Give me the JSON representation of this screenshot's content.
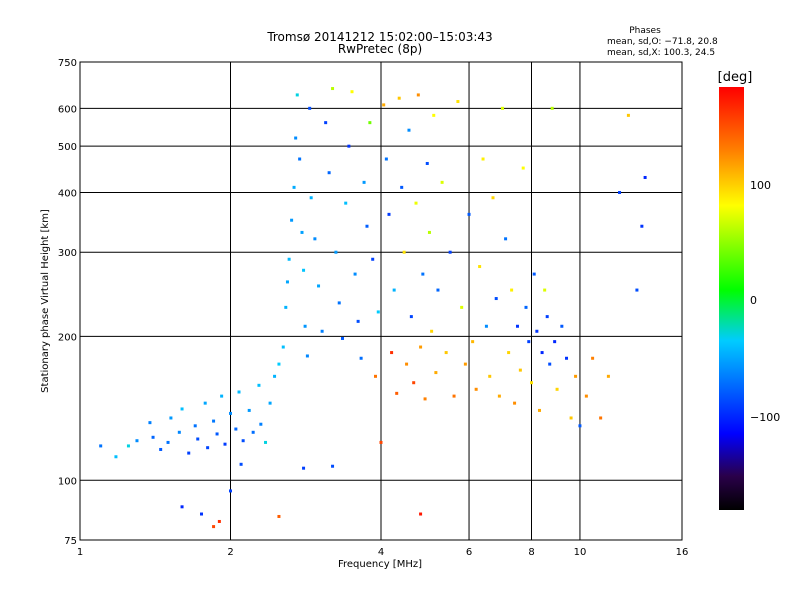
{
  "header": {
    "title": "Tromsø 20141212 15:02:00–15:03:43",
    "subtitle": "RwPretec (8p)"
  },
  "phases_panel": {
    "label": "Phases",
    "line_o": "mean, sd,O: −71.8, 20.8",
    "line_x": "mean, sd,X: 100.3, 24.5"
  },
  "colorbar": {
    "unit": "[deg]",
    "tick_labels": [
      "100",
      "0",
      "−100"
    ]
  },
  "chart_data": {
    "type": "scatter",
    "title": "Tromsø 20141212 15:02:00–15:03:43",
    "subtitle": "RwPretec (8p)",
    "xlabel": "Frequency [MHz]",
    "ylabel": "Stationary phase Virtual Height [km]",
    "x_scale": "log",
    "y_scale": "log",
    "xlim": [
      1,
      16
    ],
    "ylim": [
      75,
      750
    ],
    "x_ticks": [
      1,
      2,
      4,
      6,
      8,
      10,
      16
    ],
    "x_tick_labels": [
      "1",
      "2",
      "4",
      "6",
      "8",
      "10",
      "16"
    ],
    "y_ticks": [
      75,
      100,
      200,
      300,
      400,
      500,
      600,
      750
    ],
    "y_tick_labels": [
      "75",
      "100",
      "200",
      "300",
      "400",
      "500",
      "600",
      "750"
    ],
    "grid": true,
    "color_scale": {
      "quantity": "phase",
      "unit": "deg",
      "range": [
        -180,
        180
      ],
      "ticks": [
        100,
        0,
        -100
      ]
    },
    "points": [
      [
        1.1,
        118,
        -70
      ],
      [
        1.18,
        112,
        -40
      ],
      [
        1.25,
        118,
        -30
      ],
      [
        1.3,
        121,
        -60
      ],
      [
        1.38,
        132,
        -65
      ],
      [
        1.4,
        123,
        -75
      ],
      [
        1.45,
        116,
        -80
      ],
      [
        1.5,
        120,
        -70
      ],
      [
        1.52,
        135,
        -55
      ],
      [
        1.58,
        126,
        -62
      ],
      [
        1.6,
        141,
        -40
      ],
      [
        1.65,
        114,
        -90
      ],
      [
        1.7,
        130,
        -70
      ],
      [
        1.72,
        122,
        -85
      ],
      [
        1.78,
        145,
        -50
      ],
      [
        1.8,
        117,
        -88
      ],
      [
        1.85,
        133,
        -68
      ],
      [
        1.88,
        125,
        -80
      ],
      [
        1.92,
        150,
        -45
      ],
      [
        1.95,
        119,
        -92
      ],
      [
        2.0,
        138,
        -60
      ],
      [
        2.05,
        128,
        -75
      ],
      [
        2.08,
        153,
        -42
      ],
      [
        2.12,
        121,
        -85
      ],
      [
        2.18,
        140,
        -55
      ],
      [
        2.22,
        126,
        -72
      ],
      [
        2.28,
        158,
        -40
      ],
      [
        2.3,
        131,
        -65
      ],
      [
        2.35,
        120,
        -30
      ],
      [
        2.4,
        145,
        -50
      ],
      [
        2.45,
        165,
        -45
      ],
      [
        2.5,
        175,
        -35
      ],
      [
        2.55,
        190,
        -40
      ],
      [
        2.58,
        230,
        -45
      ],
      [
        2.6,
        260,
        -50
      ],
      [
        2.62,
        290,
        -42
      ],
      [
        2.65,
        350,
        -55
      ],
      [
        2.68,
        410,
        -48
      ],
      [
        2.7,
        520,
        -60
      ],
      [
        2.72,
        640,
        -30
      ],
      [
        2.75,
        470,
        -70
      ],
      [
        2.78,
        330,
        -52
      ],
      [
        2.8,
        275,
        -38
      ],
      [
        2.82,
        210,
        -56
      ],
      [
        2.85,
        182,
        -62
      ],
      [
        2.88,
        600,
        -85
      ],
      [
        2.9,
        390,
        -45
      ],
      [
        2.95,
        320,
        -60
      ],
      [
        3.0,
        255,
        -50
      ],
      [
        3.05,
        205,
        -65
      ],
      [
        3.1,
        560,
        -90
      ],
      [
        3.15,
        440,
        -75
      ],
      [
        3.2,
        660,
        60
      ],
      [
        3.25,
        300,
        -55
      ],
      [
        3.3,
        235,
        -70
      ],
      [
        3.35,
        198,
        -80
      ],
      [
        3.4,
        380,
        -40
      ],
      [
        3.45,
        500,
        -95
      ],
      [
        3.5,
        650,
        80
      ],
      [
        3.55,
        270,
        -60
      ],
      [
        3.6,
        215,
        -85
      ],
      [
        3.65,
        180,
        -72
      ],
      [
        3.7,
        420,
        -55
      ],
      [
        3.75,
        340,
        -78
      ],
      [
        3.8,
        560,
        40
      ],
      [
        3.85,
        290,
        -90
      ],
      [
        3.9,
        165,
        130
      ],
      [
        3.95,
        225,
        -35
      ],
      [
        4.0,
        120,
        150
      ],
      [
        4.05,
        610,
        110
      ],
      [
        4.1,
        470,
        -70
      ],
      [
        4.15,
        360,
        -92
      ],
      [
        4.2,
        185,
        160
      ],
      [
        4.25,
        250,
        -45
      ],
      [
        4.3,
        152,
        140
      ],
      [
        4.35,
        630,
        100
      ],
      [
        4.4,
        410,
        -80
      ],
      [
        4.45,
        300,
        90
      ],
      [
        4.5,
        175,
        120
      ],
      [
        4.55,
        540,
        -60
      ],
      [
        4.6,
        220,
        -88
      ],
      [
        4.65,
        160,
        150
      ],
      [
        4.7,
        380,
        75
      ],
      [
        4.75,
        640,
        120
      ],
      [
        4.8,
        190,
        115
      ],
      [
        4.85,
        270,
        -70
      ],
      [
        4.9,
        148,
        125
      ],
      [
        4.95,
        460,
        -85
      ],
      [
        5.0,
        330,
        60
      ],
      [
        5.05,
        205,
        95
      ],
      [
        5.1,
        580,
        80
      ],
      [
        5.15,
        168,
        110
      ],
      [
        5.2,
        250,
        -75
      ],
      [
        5.3,
        420,
        70
      ],
      [
        5.4,
        185,
        100
      ],
      [
        5.5,
        300,
        -90
      ],
      [
        5.6,
        150,
        130
      ],
      [
        5.7,
        620,
        90
      ],
      [
        5.8,
        230,
        70
      ],
      [
        5.9,
        175,
        115
      ],
      [
        6.0,
        360,
        -80
      ],
      [
        6.1,
        195,
        105
      ],
      [
        6.2,
        155,
        120
      ],
      [
        6.3,
        280,
        90
      ],
      [
        6.4,
        470,
        85
      ],
      [
        6.5,
        210,
        -60
      ],
      [
        6.6,
        165,
        100
      ],
      [
        6.7,
        390,
        95
      ],
      [
        6.8,
        240,
        -85
      ],
      [
        6.9,
        150,
        110
      ],
      [
        7.0,
        600,
        70
      ],
      [
        7.1,
        320,
        -70
      ],
      [
        7.2,
        185,
        95
      ],
      [
        7.3,
        250,
        85
      ],
      [
        7.4,
        145,
        120
      ],
      [
        7.5,
        210,
        -95
      ],
      [
        7.6,
        170,
        100
      ],
      [
        7.7,
        450,
        80
      ],
      [
        7.8,
        230,
        -75
      ],
      [
        7.9,
        195,
        -90
      ],
      [
        8.0,
        160,
        90
      ],
      [
        8.1,
        270,
        -80
      ],
      [
        8.2,
        205,
        -95
      ],
      [
        8.3,
        140,
        110
      ],
      [
        8.4,
        185,
        -100
      ],
      [
        8.5,
        250,
        70
      ],
      [
        8.6,
        220,
        -90
      ],
      [
        8.7,
        175,
        -85
      ],
      [
        8.8,
        600,
        60
      ],
      [
        8.9,
        195,
        -100
      ],
      [
        9.0,
        155,
        95
      ],
      [
        9.2,
        210,
        -80
      ],
      [
        9.4,
        180,
        -95
      ],
      [
        9.6,
        135,
        100
      ],
      [
        9.8,
        165,
        115
      ],
      [
        10.0,
        130,
        -80
      ],
      [
        10.3,
        150,
        120
      ],
      [
        10.6,
        180,
        125
      ],
      [
        11.0,
        135,
        130
      ],
      [
        11.4,
        165,
        110
      ],
      [
        12.0,
        400,
        -90
      ],
      [
        12.5,
        580,
        100
      ],
      [
        13.0,
        250,
        -85
      ],
      [
        13.3,
        340,
        -95
      ],
      [
        13.5,
        430,
        -100
      ],
      [
        1.6,
        88,
        -100
      ],
      [
        1.75,
        85,
        -95
      ],
      [
        1.85,
        80,
        150
      ],
      [
        1.9,
        82,
        160
      ],
      [
        2.0,
        95,
        -90
      ],
      [
        2.1,
        108,
        -85
      ],
      [
        2.5,
        84,
        140
      ],
      [
        2.8,
        106,
        -90
      ],
      [
        3.2,
        107,
        -85
      ],
      [
        4.8,
        85,
        170
      ]
    ]
  }
}
